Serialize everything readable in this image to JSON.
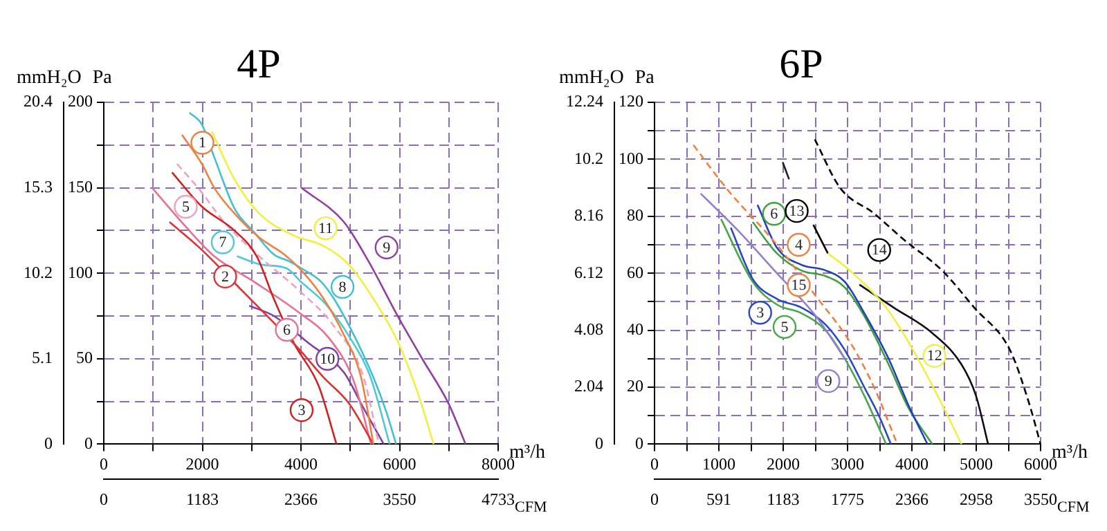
{
  "chart_data": [
    {
      "type": "line",
      "title": "4P",
      "ylabel": "Pa",
      "y2label": "mmH₂O",
      "xlabel": "m³/h",
      "x2label": "CFM",
      "xlim": [
        0,
        8000
      ],
      "xticks": [
        0,
        {
          "value": 1000,
          "label": null
        },
        2000,
        {
          "value": 3000,
          "label": null
        },
        4000,
        {
          "value": 5000,
          "label": null
        },
        6000,
        {
          "value": 7000,
          "label": null
        },
        8000
      ],
      "ylim": [
        0,
        200
      ],
      "yticks": [
        0,
        {
          "value": 25,
          "label": null
        },
        50,
        {
          "value": 75,
          "label": null
        },
        100,
        {
          "value": 125,
          "label": null
        },
        150,
        {
          "value": 175,
          "label": null
        },
        200
      ],
      "y2lim": [
        0,
        20.4
      ],
      "y2ticks": [
        0,
        5.1,
        10.2,
        15.3,
        20.4
      ],
      "x2lim": [
        0,
        4733
      ],
      "x2ticks": [
        0,
        1183,
        2366,
        3550,
        4733
      ],
      "grid": true,
      "legend": false,
      "marker": "none",
      "annotations": [
        {
          "text": "1",
          "x": 2000,
          "y": 165
        },
        {
          "text": "5",
          "x": 2000,
          "y": 147
        },
        {
          "text": "7",
          "x": 2750,
          "y": 110
        },
        {
          "text": "2",
          "x": 2800,
          "y": 90
        },
        {
          "text": "11",
          "x": 4500,
          "y": 115
        },
        {
          "text": "9",
          "x": 5400,
          "y": 107
        },
        {
          "text": "8",
          "x": 4450,
          "y": 92
        },
        {
          "text": "6",
          "x": 4050,
          "y": 75
        },
        {
          "text": "10",
          "x": 4200,
          "y": 58
        },
        {
          "text": "3",
          "x": 4350,
          "y": 28
        }
      ],
      "series": [
        {
          "color": "#f08040",
          "x": [
            1586,
            1990,
            2240,
            2650,
            3150,
            3660,
            4060,
            4460,
            4870,
            5220,
            5470
          ],
          "values": [
            181,
            164,
            150,
            135,
            121,
            111,
            100,
            85,
            64,
            39,
            0
          ]
        },
        {
          "color": "#f0f040",
          "x": [
            2190,
            2650,
            3150,
            3860,
            4460,
            4970,
            5470,
            5980,
            6380,
            6690
          ],
          "values": [
            183,
            155,
            135,
            122,
            116,
            105,
            85,
            59,
            29,
            0
          ]
        },
        {
          "color": "#9040a0",
          "x": [
            4010,
            4870,
            5370,
            5980,
            6480,
            6990,
            7340
          ],
          "values": [
            150,
            130,
            107,
            74,
            49,
            24,
            0
          ]
        },
        {
          "color": "#e03030",
          "x": [
            1333,
            1940,
            2800,
            3450,
            4010,
            4460,
            4970,
            5470
          ],
          "values": [
            130,
            115,
            90,
            71,
            54,
            39,
            24,
            0
          ]
        },
        {
          "color": "#d02020",
          "x": [
            1384,
            1990,
            2650,
            3100,
            3450,
            3860,
            4360,
            4720
          ],
          "values": [
            159,
            139,
            125,
            110,
            85,
            59,
            34,
            0
          ]
        },
        {
          "color": "#f0a0c0",
          "line_style": "dashed",
          "x": [
            1485,
            1940,
            2440,
            3150,
            3960,
            4670,
            5270,
            5580
          ],
          "values": [
            164,
            149,
            130,
            110,
            90,
            69,
            39,
            0
          ]
        },
        {
          "color": "#e87090",
          "x": [
            980,
            1640,
            2240,
            3050,
            3960,
            4570,
            5070,
            5420
          ],
          "values": [
            150,
            128,
            110,
            95,
            77,
            62,
            37,
            0
          ]
        },
        {
          "color": "#8040a0",
          "x": [
            2950,
            3450,
            4160,
            4870,
            5270,
            5680
          ],
          "values": [
            81,
            75,
            59,
            42,
            21,
            0
          ]
        },
        {
          "color": "#40c0d0",
          "x": [
            1737,
            1990,
            2240,
            2650,
            3050,
            3450,
            3760,
            4060,
            4410,
            4670,
            5070,
            5470,
            5730,
            5930
          ],
          "values": [
            194,
            187,
            168,
            138,
            124,
            111,
            107,
            102,
            95,
            85,
            64,
            39,
            19,
            0
          ]
        },
        {
          "color": "#50c8d8",
          "x": [
            2700,
            3200,
            3700,
            4000,
            4500,
            5000,
            5400,
            5800
          ],
          "values": [
            110,
            105,
            103,
            95,
            82,
            62,
            40,
            0
          ]
        }
      ]
    },
    {
      "type": "line",
      "title": "6P",
      "ylabel": "Pa",
      "y2label": "mmH₂O",
      "xlabel": "m³/h",
      "x2label": "CFM",
      "xlim": [
        0,
        6000
      ],
      "xticks": [
        0,
        {
          "value": 500,
          "label": null
        },
        1000,
        {
          "value": 1500,
          "label": null
        },
        2000,
        {
          "value": 2500,
          "label": null
        },
        3000,
        {
          "value": 3500,
          "label": null
        },
        4000,
        {
          "value": 4500,
          "label": null
        },
        5000,
        {
          "value": 5500,
          "label": null
        },
        6000
      ],
      "ylim": [
        0,
        120
      ],
      "yticks": [
        0,
        {
          "value": 10,
          "label": null
        },
        20,
        {
          "value": 30,
          "label": null
        },
        40,
        {
          "value": 50,
          "label": null
        },
        60,
        {
          "value": 70,
          "label": null
        },
        80,
        {
          "value": 90,
          "label": null
        },
        100,
        {
          "value": 110,
          "label": null
        },
        120
      ],
      "y2lim": [
        0,
        12.24
      ],
      "y2ticks": [
        0,
        2.04,
        4.08,
        6.12,
        8.16,
        10.2,
        12.24
      ],
      "x2lim": [
        0,
        3550
      ],
      "x2ticks": [
        0,
        591,
        1183,
        1775,
        2366,
        2958,
        3550
      ],
      "grid": true,
      "legend": false,
      "marker": "none",
      "annotations": [
        {
          "text": "6",
          "x": 1600,
          "y": 76
        },
        {
          "text": "4",
          "x": 1940,
          "y": 70
        },
        {
          "text": "3",
          "x": 1900,
          "y": 51
        },
        {
          "text": "5",
          "x": 2279,
          "y": 46
        },
        {
          "text": "15",
          "x": 2500,
          "y": 51
        },
        {
          "text": "9",
          "x": 2960,
          "y": 27
        },
        {
          "text": "13",
          "x": 2468,
          "y": 77
        },
        {
          "text": "14",
          "x": 3750,
          "y": 73
        },
        {
          "text": "12",
          "x": 4050,
          "y": 31
        }
      ],
      "series": [
        {
          "color": "#f08040",
          "line_style": "dashed",
          "x": [
            604,
            1147,
            1902,
            2506,
            3034,
            3411,
            3774
          ],
          "values": [
            105,
            89,
            70,
            52,
            36,
            20,
            0
          ]
        },
        {
          "color": "#9080d0",
          "x": [
            717,
            1298,
            1902,
            2506,
            2958
          ],
          "values": [
            88,
            75,
            60,
            45,
            30
          ]
        },
        {
          "color": "#2040c0",
          "x": [
            1600,
            1902,
            2279,
            2657,
            2958,
            3260,
            3638,
            3940,
            4242
          ],
          "values": [
            84,
            69,
            63,
            61,
            57,
            46,
            30,
            14,
            0
          ]
        },
        {
          "color": "#40a040",
          "x": [
            1525,
            1902,
            2279,
            2657,
            2958,
            3260,
            3638,
            3940,
            4317
          ],
          "values": [
            78,
            67,
            61,
            59,
            55,
            45,
            28,
            13,
            0
          ]
        },
        {
          "color": "#2848c8",
          "x": [
            1185,
            1525,
            1902,
            2279,
            2657,
            2958,
            3260,
            3487,
            3675
          ],
          "values": [
            76,
            58,
            51,
            48,
            42,
            33,
            20,
            10,
            0
          ]
        },
        {
          "color": "#48a848",
          "x": [
            1034,
            1525,
            1902,
            2279,
            2657,
            2958,
            3260,
            3600
          ],
          "values": [
            79,
            57,
            49,
            46,
            40,
            30,
            17,
            0
          ]
        },
        {
          "color": "#f0f040",
          "x": [
            2694,
            3034,
            3562,
            3864,
            4166,
            4468,
            4770
          ],
          "values": [
            67,
            61,
            49,
            39,
            27,
            14,
            0
          ]
        },
        {
          "color": "#000000",
          "x": [
            2468,
            2694
          ],
          "values": [
            77,
            67
          ]
        },
        {
          "color": "#101010",
          "x": [
            3185,
            3713,
            4317,
            4770,
            4996,
            5185
          ],
          "values": [
            56,
            48,
            39,
            28,
            17,
            0
          ]
        },
        {
          "color": "#000000",
          "line_style": "dashed",
          "x": [
            2491,
            2883,
            3411,
            3864,
            4468,
            4966,
            5525,
            5826,
            6000
          ],
          "values": [
            107,
            90,
            81,
            72,
            61,
            48,
            33,
            14,
            0
          ]
        },
        {
          "color": "#202020",
          "x": [
            1992,
            2091
          ],
          "values": [
            99,
            93
          ]
        }
      ]
    }
  ]
}
